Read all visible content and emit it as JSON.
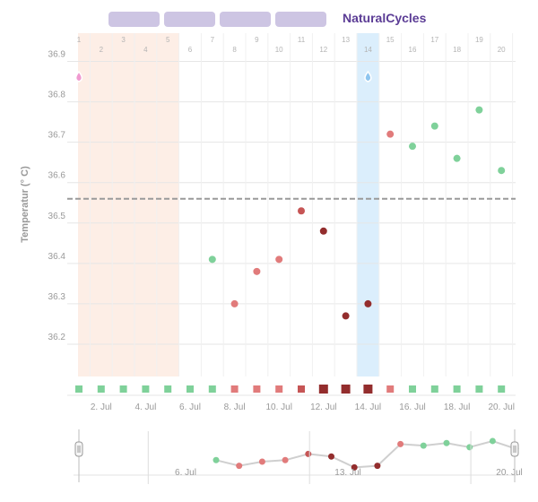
{
  "header": {
    "tabs": [
      "",
      "",
      "",
      ""
    ],
    "brand": "NaturalCycles"
  },
  "colors": {
    "green": "#7fd19a",
    "red": "#e17b7b",
    "medium_red": "#c65555",
    "dark_red": "#932d2d",
    "period_band": "#fdeee6",
    "ovulation_band": "#dbeefc",
    "coverline": "#9a9a9a",
    "brand": "#5b3c95",
    "period_drop": "#f09ad0",
    "ovulation_drop": "#8ec5ef"
  },
  "chart_data": {
    "type": "scatter",
    "ylabel": "Temperatur (° C)",
    "ylim": [
      36.12,
      36.97
    ],
    "y_ticks": [
      "36.2",
      "36.3",
      "36.4",
      "36.5",
      "36.6",
      "36.7",
      "36.8",
      "36.9"
    ],
    "coverline": 36.56,
    "cycle_days": [
      "1",
      "2",
      "3",
      "4",
      "5",
      "6",
      "7",
      "8",
      "9",
      "10",
      "11",
      "12",
      "13",
      "14",
      "15",
      "16",
      "17",
      "18",
      "19",
      "20"
    ],
    "date_labels": [
      {
        "day": 2,
        "label": "2. Jul"
      },
      {
        "day": 4,
        "label": "4. Jul"
      },
      {
        "day": 6,
        "label": "6. Jul"
      },
      {
        "day": 8,
        "label": "8. Jul"
      },
      {
        "day": 10,
        "label": "10. Jul"
      },
      {
        "day": 12,
        "label": "12. Jul"
      },
      {
        "day": 14,
        "label": "14. Jul"
      },
      {
        "day": 16,
        "label": "16. Jul"
      },
      {
        "day": 18,
        "label": "18. Jul"
      },
      {
        "day": 20,
        "label": "20. Jul"
      }
    ],
    "period_days": [
      1,
      5
    ],
    "ovulation_day": 14,
    "points": [
      {
        "day": 7,
        "value": 36.41,
        "status": "green"
      },
      {
        "day": 8,
        "value": 36.3,
        "status": "red"
      },
      {
        "day": 9,
        "value": 36.38,
        "status": "red"
      },
      {
        "day": 10,
        "value": 36.41,
        "status": "red"
      },
      {
        "day": 11,
        "value": 36.53,
        "status": "medium_red"
      },
      {
        "day": 12,
        "value": 36.48,
        "status": "dark_red"
      },
      {
        "day": 13,
        "value": 36.27,
        "status": "dark_red"
      },
      {
        "day": 14,
        "value": 36.3,
        "status": "dark_red"
      },
      {
        "day": 15,
        "value": 36.72,
        "status": "red"
      },
      {
        "day": 16,
        "value": 36.69,
        "status": "green"
      },
      {
        "day": 17,
        "value": 36.74,
        "status": "green"
      },
      {
        "day": 18,
        "value": 36.66,
        "status": "green"
      },
      {
        "day": 19,
        "value": 36.78,
        "status": "green"
      },
      {
        "day": 20,
        "value": 36.63,
        "status": "green"
      }
    ],
    "day_markers": [
      {
        "day": 1,
        "status": "green",
        "size": "normal"
      },
      {
        "day": 2,
        "status": "green",
        "size": "normal"
      },
      {
        "day": 3,
        "status": "green",
        "size": "normal"
      },
      {
        "day": 4,
        "status": "green",
        "size": "normal"
      },
      {
        "day": 5,
        "status": "green",
        "size": "normal"
      },
      {
        "day": 6,
        "status": "green",
        "size": "normal"
      },
      {
        "day": 7,
        "status": "green",
        "size": "normal"
      },
      {
        "day": 8,
        "status": "red",
        "size": "normal"
      },
      {
        "day": 9,
        "status": "red",
        "size": "normal"
      },
      {
        "day": 10,
        "status": "red",
        "size": "normal"
      },
      {
        "day": 11,
        "status": "medium_red",
        "size": "normal"
      },
      {
        "day": 12,
        "status": "dark_red",
        "size": "large"
      },
      {
        "day": 13,
        "status": "dark_red",
        "size": "large"
      },
      {
        "day": 14,
        "status": "dark_red",
        "size": "large"
      },
      {
        "day": 15,
        "status": "red",
        "size": "normal"
      },
      {
        "day": 16,
        "status": "green",
        "size": "normal"
      },
      {
        "day": 17,
        "status": "green",
        "size": "normal"
      },
      {
        "day": 18,
        "status": "green",
        "size": "normal"
      },
      {
        "day": 19,
        "status": "green",
        "size": "normal"
      },
      {
        "day": 20,
        "status": "green",
        "size": "normal"
      }
    ],
    "navigator": {
      "labels": [
        {
          "day": 6,
          "label": "6. Jul"
        },
        {
          "day": 13,
          "label": "13. Jul"
        },
        {
          "day": 20,
          "label": "20. Jul"
        }
      ]
    }
  }
}
